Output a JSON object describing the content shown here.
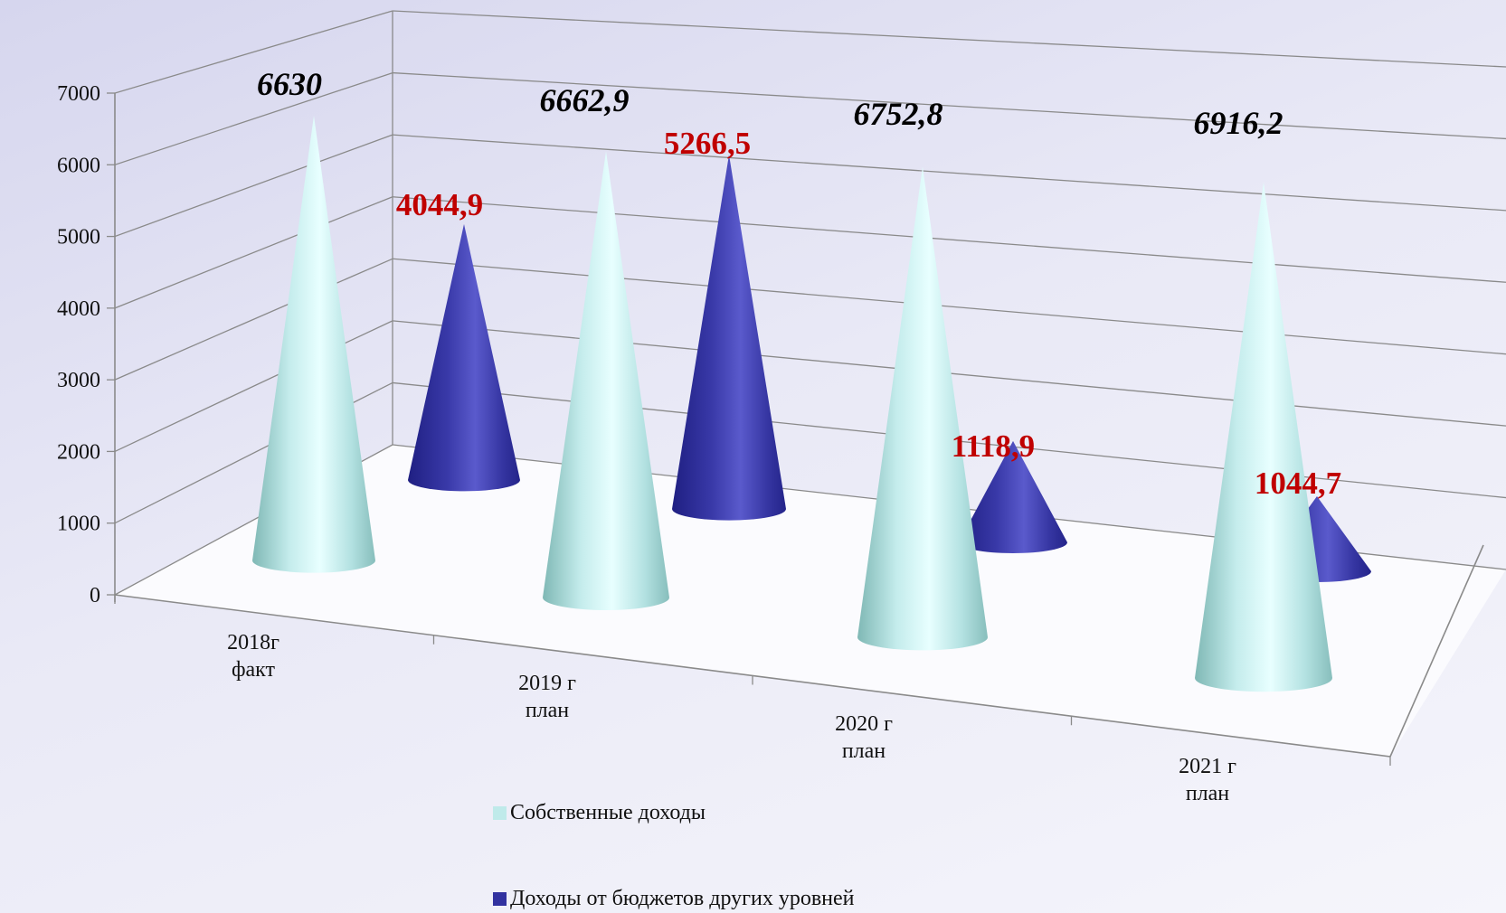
{
  "chart_data": {
    "type": "bar",
    "title": "",
    "xlabel": "",
    "ylabel": "",
    "ylim": [
      0,
      7000
    ],
    "yticks": [
      0,
      1000,
      2000,
      3000,
      4000,
      5000,
      6000,
      7000
    ],
    "categories": [
      [
        "2018г",
        "факт"
      ],
      [
        "2019 г",
        "план"
      ],
      [
        "2020 г",
        "план"
      ],
      [
        "2021 г",
        "план"
      ]
    ],
    "series": [
      {
        "name": "Собственные доходы",
        "values": [
          6630,
          6662.9,
          6752.8,
          6916.2
        ],
        "labels": [
          "6630",
          "6662,9",
          "6752,8",
          "6916,2"
        ],
        "color": "#bfeaea",
        "label_color": "#000000"
      },
      {
        "name": "Доходы от бюджетов других уровней",
        "values": [
          4044.9,
          5266.5,
          1118.9,
          1044.7
        ],
        "labels": [
          "4044,9",
          "5266,5",
          "1118,9",
          "1044,7"
        ],
        "color": "#3a3aa8",
        "label_color": "#c00000"
      }
    ],
    "grid": true,
    "legend_position": "bottom",
    "style": "3d-cone"
  }
}
